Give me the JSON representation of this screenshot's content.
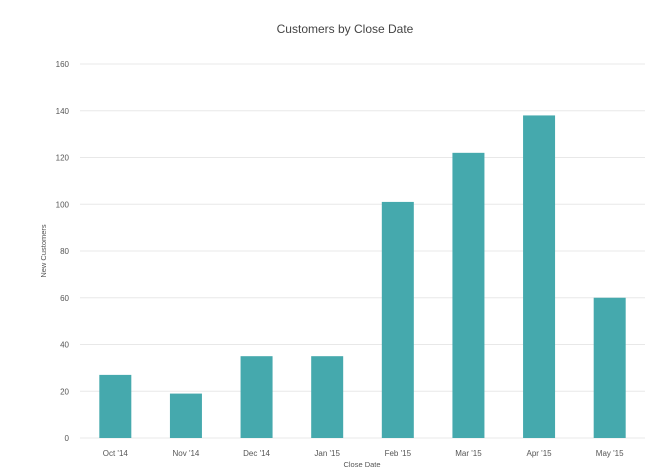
{
  "chart_data": {
    "type": "bar",
    "title": "Customers by Close Date",
    "xlabel": "Close Date",
    "ylabel": "New Customers",
    "categories": [
      "Oct '14",
      "Nov '14",
      "Dec '14",
      "Jan '15",
      "Feb '15",
      "Mar '15",
      "Apr '15",
      "May '15"
    ],
    "values": [
      27,
      19,
      35,
      35,
      101,
      122,
      138,
      60
    ],
    "ylim": [
      0,
      160
    ],
    "yticks": [
      0,
      20,
      40,
      60,
      80,
      100,
      120,
      140,
      160
    ],
    "grid": true,
    "legend": "none",
    "bar_color": "#45a9ad",
    "grid_color": "#e8e8e8"
  }
}
